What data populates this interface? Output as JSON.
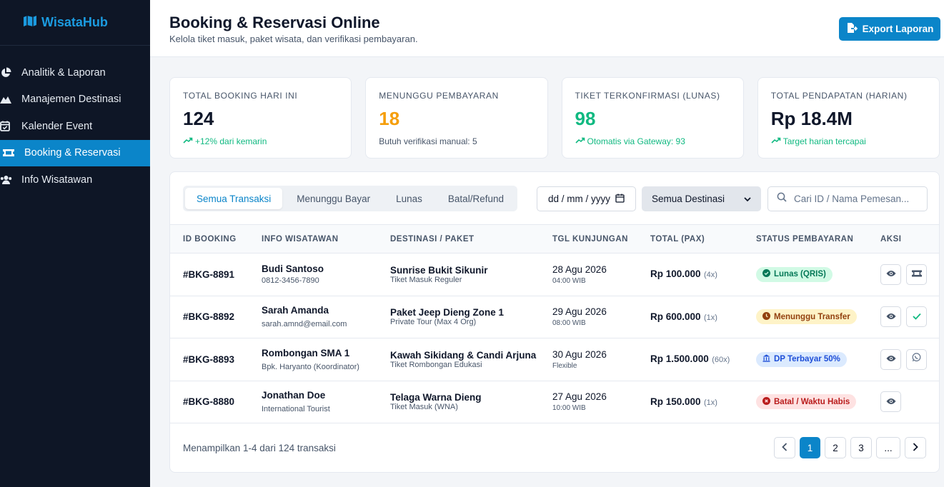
{
  "brand": {
    "name": "WisataHub"
  },
  "sidebar": {
    "items": [
      {
        "label": "Analitik & Laporan",
        "icon": "pie-chart-icon"
      },
      {
        "label": "Manajemen Destinasi",
        "icon": "mountain-icon"
      },
      {
        "label": "Kalender Event",
        "icon": "calendar-check-icon"
      },
      {
        "label": "Booking & Reservasi",
        "icon": "ticket-icon",
        "active": true
      },
      {
        "label": "Info Wisatawan",
        "icon": "users-icon"
      }
    ]
  },
  "header": {
    "title": "Booking & Reservasi Online",
    "subtitle": "Kelola tiket masuk, paket wisata, dan verifikasi pembayaran.",
    "export_label": "Export Laporan"
  },
  "stats": [
    {
      "label": "TOTAL BOOKING HARI INI",
      "value": "124",
      "note": "+12% dari kemarin",
      "value_color": "default",
      "note_color": "green",
      "note_icon": "trend-up-icon"
    },
    {
      "label": "MENUNGGU PEMBAYARAN",
      "value": "18",
      "note": "Butuh verifikasi manual: 5",
      "value_color": "orange",
      "note_color": "default"
    },
    {
      "label": "TIKET TERKONFIRMASI (LUNAS)",
      "value": "98",
      "note": "Otomatis via Gateway: 93",
      "value_color": "green",
      "note_color": "green",
      "note_icon": "trend-up-icon"
    },
    {
      "label": "TOTAL PENDAPATAN (HARIAN)",
      "value": "Rp 18.4M",
      "note": "Target harian tercapai",
      "value_color": "default",
      "note_color": "green",
      "note_icon": "trend-up-icon"
    }
  ],
  "filters": {
    "tabs": [
      "Semua Transaksi",
      "Menunggu Bayar",
      "Lunas",
      "Batal/Refund"
    ],
    "active_tab": 0,
    "date_placeholder": "dd / mm / yyyy",
    "destination_selected": "Semua Destinasi",
    "search_placeholder": "Cari ID / Nama Pemesan..."
  },
  "table": {
    "headers": [
      "ID BOOKING",
      "INFO WISATAWAN",
      "DESTINASI / PAKET",
      "TGL KUNJUNGAN",
      "TOTAL (PAX)",
      "STATUS PEMBAYARAN",
      "AKSI"
    ],
    "rows": [
      {
        "id": "#BKG-8891",
        "name": "Budi Santoso",
        "contact": "0812-3456-7890",
        "destination": "Sunrise Bukit Sikunir",
        "package": "Tiket Masuk Reguler",
        "date": "28 Agu 2026",
        "time": "04:00 WIB",
        "price": "Rp 100.000",
        "pax": "(4x)",
        "status": "Lunas (QRIS)",
        "status_type": "green",
        "status_icon": "check-circle-icon",
        "actions": [
          "eye-icon",
          "ticket-icon"
        ]
      },
      {
        "id": "#BKG-8892",
        "name": "Sarah Amanda",
        "contact": "sarah.amnd@email.com",
        "destination": "Paket Jeep Dieng Zone 1",
        "package": "Private Tour (Max 4 Org)",
        "date": "29 Agu 2026",
        "time": "08:00 WIB",
        "price": "Rp 600.000",
        "pax": "(1x)",
        "status": "Menunggu Transfer",
        "status_type": "yellow",
        "status_icon": "clock-icon",
        "actions": [
          "eye-icon",
          "check-icon"
        ]
      },
      {
        "id": "#BKG-8893",
        "name": "Rombongan SMA 1",
        "contact": "Bpk. Haryanto (Koordinator)",
        "destination": "Kawah Sikidang & Candi Arjuna",
        "package": "Tiket Rombongan Edukasi",
        "date": "30 Agu 2026",
        "time": "Flexible",
        "price": "Rp 1.500.000",
        "pax": "(60x)",
        "status": "DP Terbayar 50%",
        "status_type": "blue",
        "status_icon": "bank-icon",
        "actions": [
          "eye-icon",
          "whatsapp-icon"
        ]
      },
      {
        "id": "#BKG-8880",
        "name": "Jonathan Doe",
        "contact": "International Tourist",
        "destination": "Telaga Warna Dieng",
        "package": "Tiket Masuk (WNA)",
        "date": "27 Agu 2026",
        "time": "10:00 WIB",
        "price": "Rp 150.000",
        "pax": "(1x)",
        "status": "Batal / Waktu Habis",
        "status_type": "red",
        "status_icon": "x-circle-icon",
        "actions": [
          "eye-icon"
        ]
      }
    ]
  },
  "footer": {
    "showing": "Menampilkan 1-4 dari 124 transaksi",
    "pages": [
      "1",
      "2",
      "3",
      "..."
    ],
    "active_page": "1"
  },
  "colors": {
    "primary": "#0b85c9",
    "sidebar_bg": "#0e1626",
    "orange": "#f59e0b",
    "green": "#10b981"
  }
}
